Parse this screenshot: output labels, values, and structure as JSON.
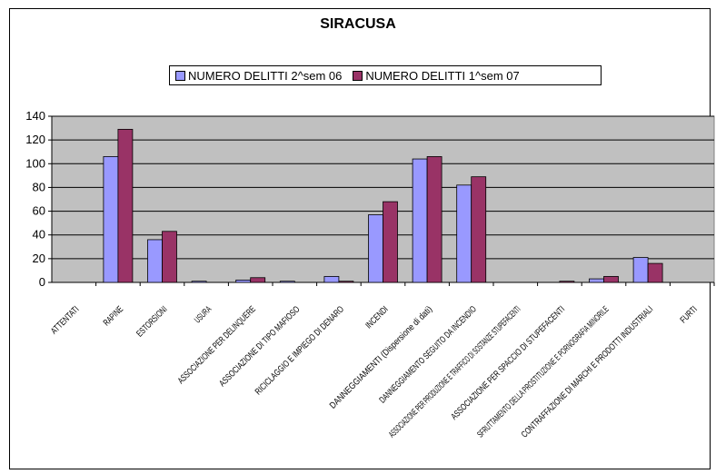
{
  "chart_data": {
    "type": "bar",
    "title": "SIRACUSA",
    "xlabel": "",
    "ylabel": "",
    "ylim": [
      0,
      140
    ],
    "yticks": [
      "0",
      "20",
      "40",
      "60",
      "80",
      "100",
      "120",
      "140"
    ],
    "grid": true,
    "legend_position": "top",
    "plot_background": "#c0c0c0",
    "categories": [
      "ATTENTATI",
      "RAPINE",
      "ESTORSIONI",
      "USURA",
      "ASSOCIAZIONE PER DELINQUERE",
      "ASSOCIAZIONE DI TIPO MAFIOSO",
      "RICICLAGGIO E IMPIEGO DI DENARO",
      "INCENDI",
      "DANNEGGIAMENTI (Dispersione di dati)",
      "DANNEGGIAMENTO SEGUITO DA INCENDIO",
      "ASSOCIAZIONE PER PRODUZIONE E TRAFFICO DI SOSTANZE STUPEFACENTI",
      "ASSOCIAZIONE PER SPACCIO DI STUPEFACENTI",
      "SFRUTTAMENTO DELLA PROSTITUZIONE E PORNOGRAFIA MINORILE",
      "CONTRAFFAZIONE DI MARCHI E PRODOTTI INDUSTRIALI",
      "FURTI"
    ],
    "series": [
      {
        "name": "NUMERO DELITTI 2^sem 06",
        "color": "#9999ff",
        "values": [
          0,
          106,
          36,
          1,
          2,
          1,
          5,
          57,
          104,
          82,
          0,
          0,
          3,
          21,
          0
        ]
      },
      {
        "name": "NUMERO DELITTI 1^sem 07",
        "color": "#993366",
        "values": [
          0,
          129,
          43,
          0,
          4,
          0,
          1,
          68,
          106,
          89,
          0,
          1,
          5,
          16,
          0
        ]
      }
    ]
  }
}
